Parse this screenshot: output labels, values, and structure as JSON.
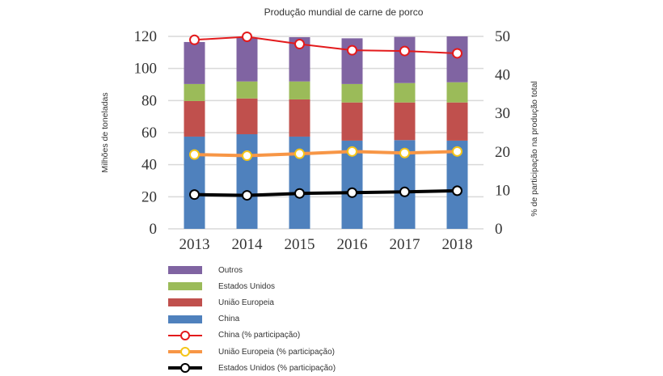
{
  "chart_data": {
    "type": "bar",
    "title": "Produção mundial de carne de porco",
    "xlabel": "",
    "ylabel": "Milhões de toneladas",
    "y2label": "% de participação na produção total",
    "categories": [
      "2013",
      "2014",
      "2015",
      "2016",
      "2017",
      "2018"
    ],
    "ylim": [
      0,
      120
    ],
    "y2lim": [
      0,
      50
    ],
    "yticks": [
      "0",
      "20",
      "40",
      "60",
      "80",
      "100",
      "120"
    ],
    "y2ticks": [
      "0",
      "10",
      "20",
      "30",
      "40",
      "50"
    ],
    "grid": true,
    "legend_position": "bottom",
    "stacked_series": [
      {
        "name": "China",
        "color": "#4f81bd",
        "values": [
          57.5,
          59.0,
          57.5,
          55.0,
          55.3,
          55.0
        ]
      },
      {
        "name": "União Europeia",
        "color": "#c0504d",
        "values": [
          22.2,
          22.3,
          23.2,
          23.8,
          23.5,
          23.8
        ]
      },
      {
        "name": "Estados Unidos",
        "color": "#9bbb59",
        "values": [
          10.6,
          10.6,
          11.2,
          11.5,
          12.1,
          12.6
        ]
      },
      {
        "name": "Outros",
        "color": "#8064a2",
        "values": [
          26.2,
          27.3,
          27.6,
          28.5,
          28.8,
          28.6
        ]
      }
    ],
    "line_series": [
      {
        "name": "China (% participação)",
        "color": "#e31a1c",
        "marker_color": "#e31a1c",
        "width": 2,
        "values": [
          49.1,
          49.9,
          48.0,
          46.4,
          46.2,
          45.6
        ]
      },
      {
        "name": "União Europeia (% participação)",
        "color": "#f79646",
        "marker_color": "#f5c518",
        "width": 4,
        "values": [
          19.3,
          19.0,
          19.5,
          20.1,
          19.7,
          20.1
        ]
      },
      {
        "name": "Estados Unidos (% participação)",
        "color": "#000000",
        "marker_color": "#000000",
        "width": 4,
        "values": [
          8.9,
          8.7,
          9.2,
          9.4,
          9.6,
          9.9
        ]
      }
    ],
    "legend_order": [
      "Outros",
      "Estados Unidos",
      "União Europeia",
      "China",
      "China (% participação)",
      "União Europeia (% participação)",
      "Estados Unidos (% participação)"
    ]
  },
  "legend": {
    "items": [
      {
        "label": "Outros",
        "kind": "bar",
        "color": "#8064a2"
      },
      {
        "label": "Estados Unidos",
        "kind": "bar",
        "color": "#9bbb59"
      },
      {
        "label": "União Europeia",
        "kind": "bar",
        "color": "#c0504d"
      },
      {
        "label": "China",
        "kind": "bar",
        "color": "#4f81bd"
      },
      {
        "label": "China (% participação)",
        "kind": "line",
        "color": "#e31a1c",
        "marker_color": "#e31a1c"
      },
      {
        "label": "União Europeia (% participação)",
        "kind": "line",
        "color": "#f79646",
        "marker_color": "#f5c518"
      },
      {
        "label": "Estados Unidos (% participação)",
        "kind": "line",
        "color": "#000000",
        "marker_color": "#000000"
      }
    ]
  }
}
